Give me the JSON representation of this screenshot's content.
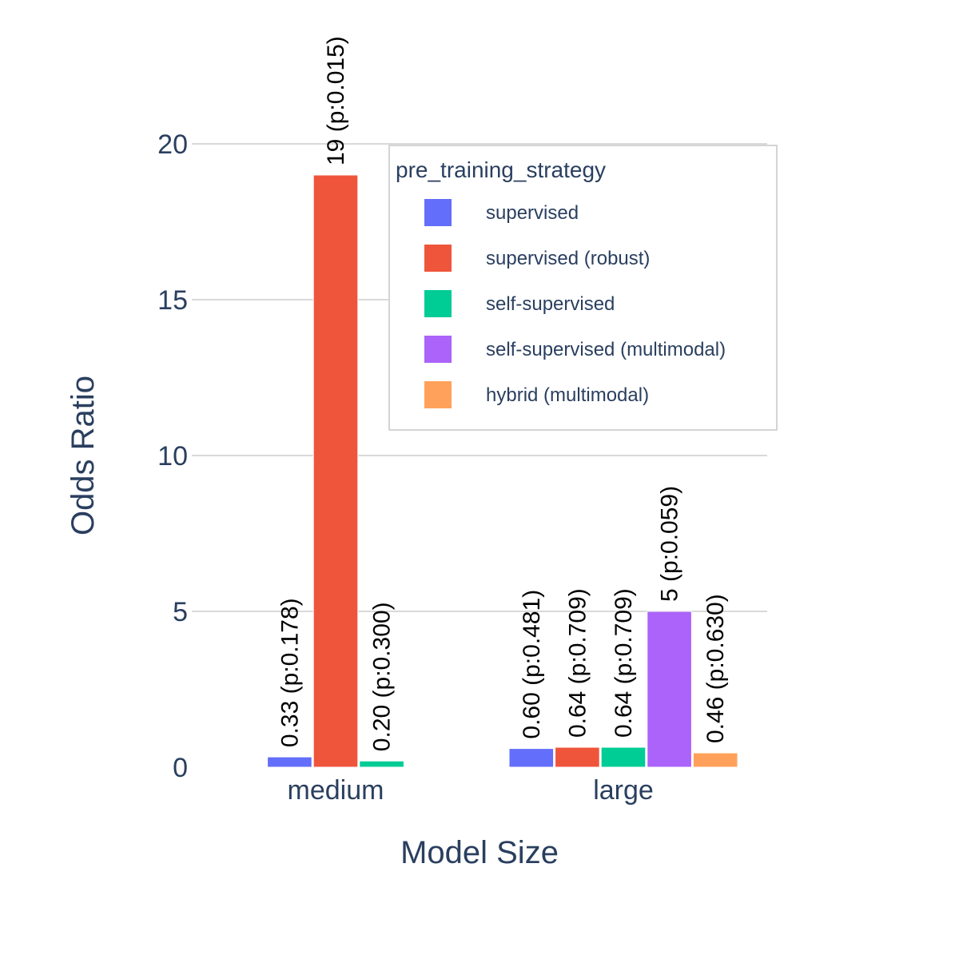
{
  "chart_data": {
    "type": "bar",
    "categories": [
      "medium",
      "large"
    ],
    "xlabel": "Model Size",
    "ylabel": "Odds Ratio",
    "ylim": [
      0,
      20
    ],
    "yticks": [
      0,
      5,
      10,
      15,
      20
    ],
    "grid": true,
    "legend_title": "pre_training_strategy",
    "legend_placement": "top-right",
    "series": [
      {
        "name": "supervised",
        "color": "#636efa",
        "values": [
          0.33,
          0.6
        ],
        "labels": [
          "0.33  (p:0.178)",
          "0.60  (p:0.481)"
        ]
      },
      {
        "name": "supervised (robust)",
        "color": "#ef553b",
        "values": [
          19,
          0.64
        ],
        "labels": [
          "19  (p:0.015)",
          "0.64  (p:0.709)"
        ]
      },
      {
        "name": "self-supervised",
        "color": "#00cc96",
        "values": [
          0.2,
          0.64
        ],
        "labels": [
          "0.20  (p:0.300)",
          "0.64  (p:0.709)"
        ]
      },
      {
        "name": "self-supervised (multimodal)",
        "color": "#ab63fa",
        "values": [
          null,
          5
        ],
        "labels": [
          "",
          "5  (p:0.059)"
        ]
      },
      {
        "name": "hybrid (multimodal)",
        "color": "#ffa15a",
        "values": [
          null,
          0.46
        ],
        "labels": [
          "",
          "0.46  (p:0.630)"
        ]
      }
    ]
  }
}
